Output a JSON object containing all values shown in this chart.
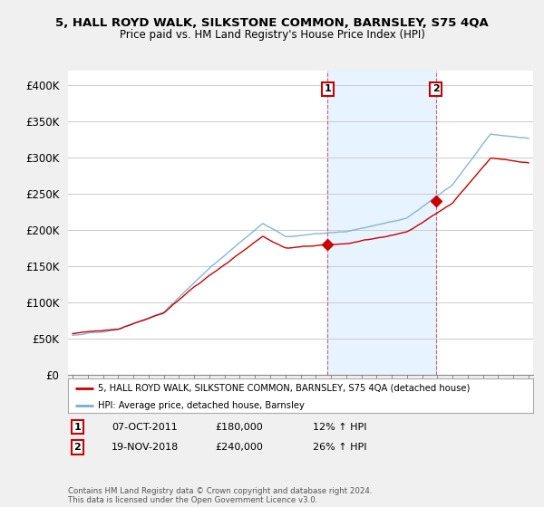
{
  "title": "5, HALL ROYD WALK, SILKSTONE COMMON, BARNSLEY, S75 4QA",
  "subtitle": "Price paid vs. HM Land Registry's House Price Index (HPI)",
  "legend_label_red": "5, HALL ROYD WALK, SILKSTONE COMMON, BARNSLEY, S75 4QA (detached house)",
  "legend_label_blue": "HPI: Average price, detached house, Barnsley",
  "annotation1_label": "1",
  "annotation1_date": "07-OCT-2011",
  "annotation1_price": "£180,000",
  "annotation1_hpi": "12% ↑ HPI",
  "annotation2_label": "2",
  "annotation2_date": "19-NOV-2018",
  "annotation2_price": "£240,000",
  "annotation2_hpi": "26% ↑ HPI",
  "footnote": "Contains HM Land Registry data © Crown copyright and database right 2024.\nThis data is licensed under the Open Government Licence v3.0.",
  "ylim": [
    0,
    420000
  ],
  "yticks": [
    0,
    50000,
    100000,
    150000,
    200000,
    250000,
    300000,
    350000,
    400000
  ],
  "ytick_labels": [
    "£0",
    "£50K",
    "£100K",
    "£150K",
    "£200K",
    "£250K",
    "£300K",
    "£350K",
    "£400K"
  ],
  "red_color": "#cc0000",
  "blue_color": "#7aaed6",
  "shade_color": "#ddeeff",
  "bg_color": "#f0f0f0",
  "plot_bg_color": "#ffffff",
  "grid_color": "#cccccc",
  "sale1_x": 2011.77,
  "sale1_y": 180000,
  "sale2_x": 2018.89,
  "sale2_y": 240000,
  "xmin": 1995,
  "xmax": 2025
}
